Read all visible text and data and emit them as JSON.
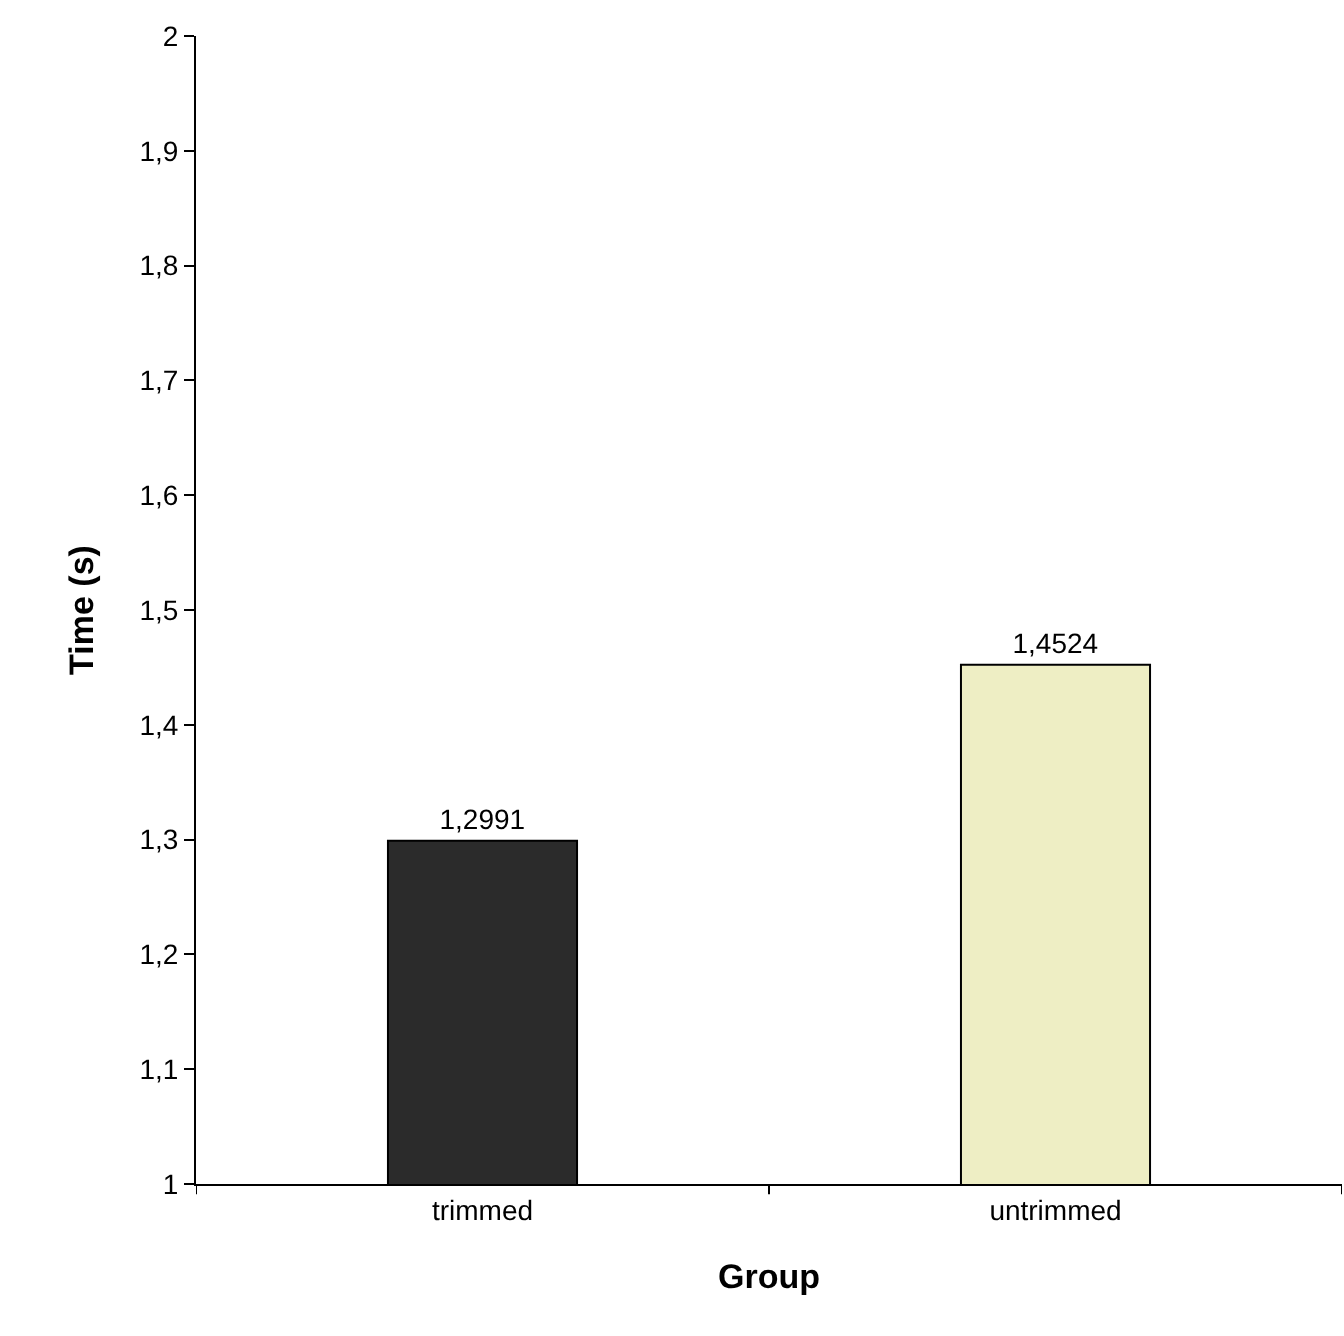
{
  "chart_data": {
    "type": "bar",
    "xlabel": "Group",
    "ylabel": "Time (s)",
    "categories": [
      "trimmed",
      "untrimmed"
    ],
    "values": [
      1.2991,
      1.4524
    ],
    "colors": [
      "#2b2b2b",
      "#eeeec4"
    ],
    "value_labels": [
      "1,2991",
      "1,4524"
    ],
    "ylim": [
      1,
      2
    ],
    "yticks": [
      1,
      {
        "value": 1.1,
        "label": "1,1"
      },
      {
        "value": 1.2,
        "label": "1,2"
      },
      {
        "value": 1.3,
        "label": "1,3"
      },
      {
        "value": 1.4,
        "label": "1,4"
      },
      {
        "value": 1.5,
        "label": "1,5"
      },
      {
        "value": 1.6,
        "label": "1,6"
      },
      {
        "value": 1.7,
        "label": "1,7"
      },
      {
        "value": 1.8,
        "label": "1,8"
      },
      {
        "value": 1.9,
        "label": "1,9"
      },
      2
    ],
    "grid": false
  }
}
